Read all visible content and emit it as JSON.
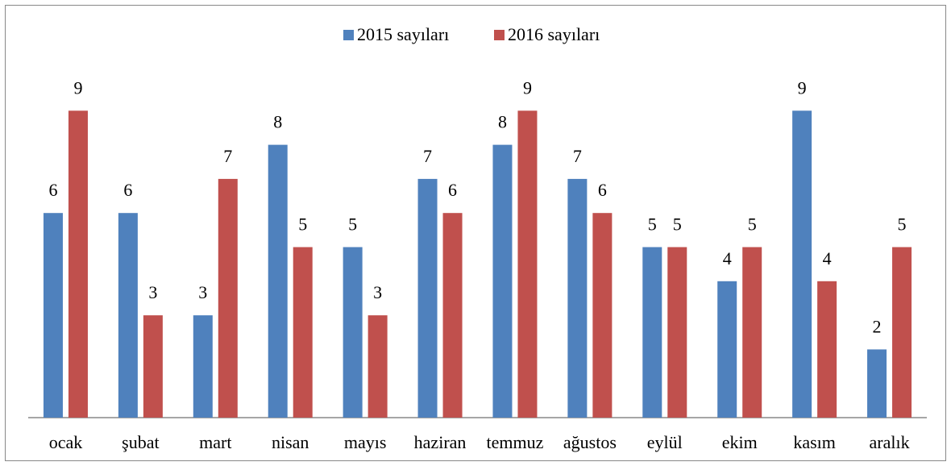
{
  "chart_data": {
    "type": "bar",
    "categories": [
      "ocak",
      "şubat",
      "mart",
      "nisan",
      "mayıs",
      "haziran",
      "temmuz",
      "ağustos",
      "eylül",
      "ekim",
      "kasım",
      "aralık"
    ],
    "series": [
      {
        "name": "2015 sayıları",
        "color": "#4f81bd",
        "values": [
          6,
          6,
          3,
          8,
          5,
          7,
          8,
          7,
          5,
          4,
          9,
          2
        ]
      },
      {
        "name": "2016 sayıları",
        "color": "#c0504d",
        "values": [
          9,
          3,
          7,
          5,
          3,
          6,
          9,
          6,
          5,
          5,
          4,
          5
        ]
      }
    ],
    "ylim": [
      0,
      10
    ],
    "legend": "top"
  }
}
